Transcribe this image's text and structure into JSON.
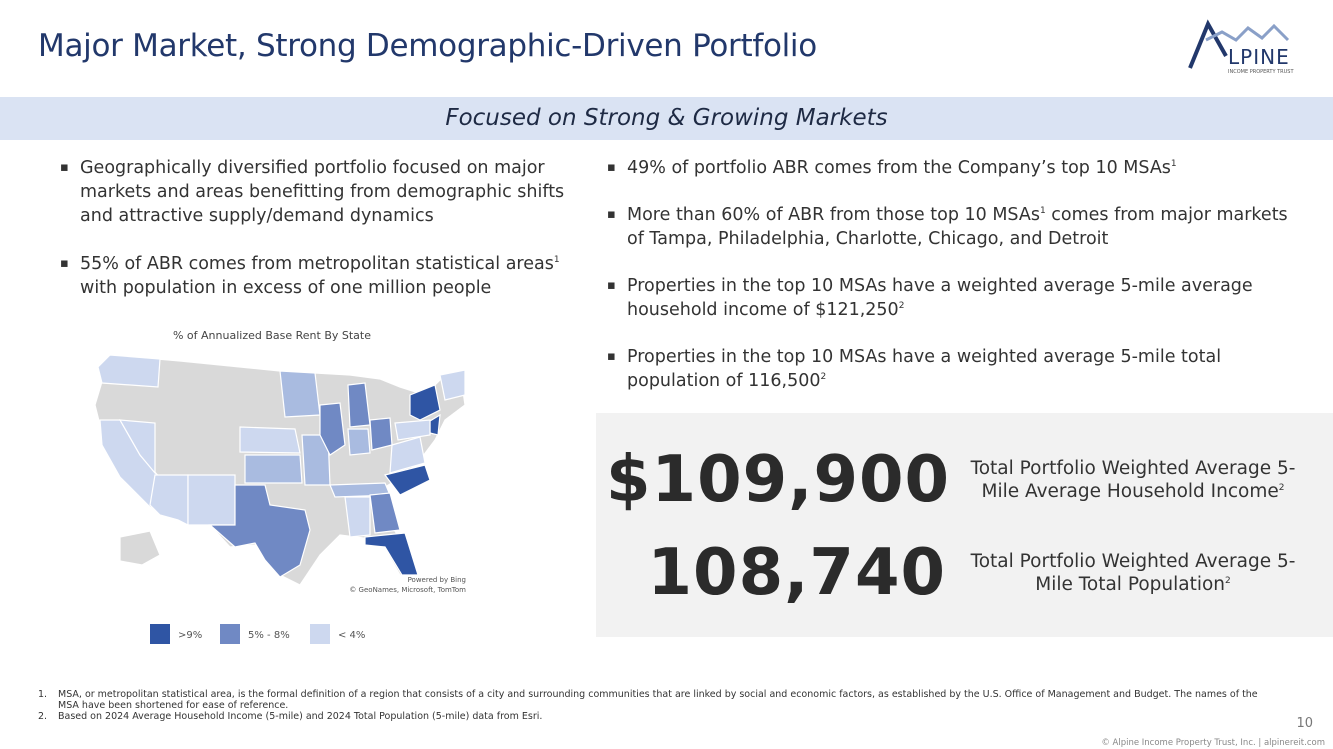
{
  "header": {
    "title": "Major Market, Strong Demographic-Driven Portfolio",
    "logo": {
      "name": "LPINE",
      "initial": "A",
      "tagline": "INCOME PROPERTY TRUST"
    }
  },
  "banner": "Focused on Strong & Growing Markets",
  "left_bullets": [
    [
      {
        "text": "Geographically diversified portfolio focused on major markets and areas benefitting from demographic shifts and attractive supply/demand dynamics"
      }
    ],
    [
      {
        "text": "55% of ABR comes from metropolitan statistical areas"
      },
      {
        "sup": "1"
      },
      {
        "text": " with population in excess of one million people"
      }
    ]
  ],
  "right_bullets": [
    [
      {
        "text": "49% of portfolio ABR comes from the Company’s top 10 MSAs"
      },
      {
        "sup": "1"
      }
    ],
    [
      {
        "text": "More than 60% of ABR from those top 10 MSAs"
      },
      {
        "sup": "1"
      },
      {
        "text": " comes from major markets of Tampa, Philadelphia, Charlotte, Chicago, and Detroit"
      }
    ],
    [
      {
        "text": "Properties in the top 10 MSAs have a weighted average 5-mile average household income of $121,250"
      },
      {
        "sup": "2"
      }
    ],
    [
      {
        "text": "Properties in the top 10 MSAs have a weighted average 5-mile total population of 116,500"
      },
      {
        "sup": "2"
      }
    ]
  ],
  "map": {
    "title": "% of Annualized Base Rent By State",
    "credit_1": "Powered by Bing",
    "credit_2": "© GeoNames, Microsoft, TomTom",
    "legend": [
      {
        "label": ">9%",
        "color": "#2f55a4"
      },
      {
        "label": "5% - 8%",
        "color": "#7089c4"
      },
      {
        "label": "< 4%",
        "color": "#cdd8ef"
      }
    ]
  },
  "stats": [
    {
      "value": "$109,900",
      "label": "Total Portfolio Weighted Average 5-Mile Average Household Income",
      "sup": "2"
    },
    {
      "value": "108,740",
      "label": "Total Portfolio Weighted Average 5-Mile Total Population",
      "sup": "2"
    }
  ],
  "footnotes": [
    {
      "number": "1.",
      "text": "MSA, or metropolitan statistical area, is the formal definition of a region that consists of a city and surrounding communities that are linked by social and economic factors, as established by the U.S. Office of Management and Budget. The names of the MSA have been shortened for ease of reference."
    },
    {
      "number": "2.",
      "text": "Based on 2024 Average Household Income (5-mile) and 2024 Total Population (5-mile) data from Esri."
    }
  ],
  "page_number": "10",
  "copyright": "© Alpine Income Property Trust, Inc.  |  alpinereit.com"
}
